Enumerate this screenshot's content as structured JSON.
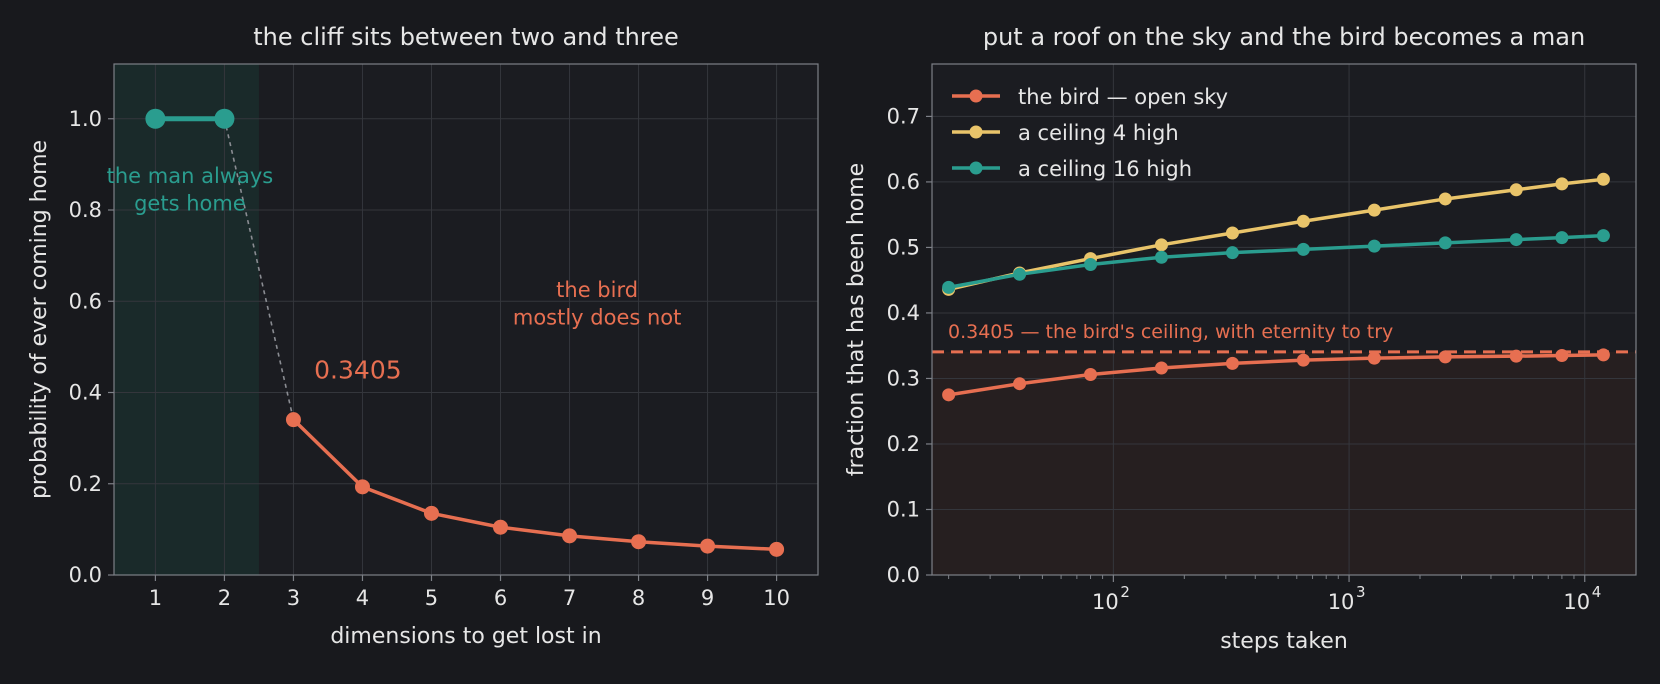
{
  "theme": {
    "background": "#18191d",
    "plot_background": "#1b1c21",
    "axes_edge": "#7d8087",
    "grid": "#34363c",
    "text": "#e6e6e6",
    "teal": "#2a9d8f",
    "orange": "#e76f51",
    "yellow": "#e9c46a",
    "dotted_link": "#8a8c92",
    "teal_band": "#1a2a2a",
    "orange_fill": "#261f20"
  },
  "chart_data": [
    {
      "type": "line",
      "title": "the cliff sits between two and three",
      "xlabel": "dimensions to get lost in",
      "ylabel": "probability of ever coming home",
      "xlim": [
        0.4,
        10.6
      ],
      "ylim": [
        0,
        1.12
      ],
      "xticks": [
        1,
        2,
        3,
        4,
        5,
        6,
        7,
        8,
        9,
        10
      ],
      "xtick_labels": [
        "1",
        "2",
        "3",
        "4",
        "5",
        "6",
        "7",
        "8",
        "9",
        "10"
      ],
      "yticks": [
        0,
        0.2,
        0.4,
        0.6,
        0.8,
        1.0
      ],
      "ytick_labels": [
        "0.0",
        "0.2",
        "0.4",
        "0.6",
        "0.8",
        "1.0"
      ],
      "grid": true,
      "shaded_x_range": [
        0.4,
        2.5
      ],
      "series": [
        {
          "color": "#2a9d8f",
          "x": [
            1,
            2
          ],
          "y": [
            1.0,
            1.0
          ]
        },
        {
          "color": "#e76f51",
          "x": [
            3,
            4,
            5,
            6,
            7,
            8,
            9,
            10
          ],
          "y": [
            0.3405,
            0.1932,
            0.1352,
            0.1047,
            0.0858,
            0.0729,
            0.0634,
            0.0562
          ]
        }
      ],
      "connector": {
        "from": [
          2,
          1.0
        ],
        "to": [
          3,
          0.3405
        ]
      },
      "annotations": [
        {
          "lines": [
            "the man always",
            "gets home"
          ],
          "x": 1.5,
          "y": 0.845,
          "color": "#2a9d8f",
          "size": 21
        },
        {
          "lines": [
            "the bird",
            "mostly does not"
          ],
          "x": 7.4,
          "y": 0.595,
          "color": "#e76f51",
          "size": 21
        },
        {
          "lines": [
            "0.3405"
          ],
          "x": 3.3,
          "y": 0.45,
          "color": "#e76f51",
          "size": 25,
          "anchor": "start"
        }
      ]
    },
    {
      "type": "line",
      "title": "put a roof on the sky and the bird becomes a man",
      "xlabel": "steps taken",
      "ylabel": "fraction that has been home",
      "xscale": "log",
      "xlim": [
        17,
        16500
      ],
      "ylim": [
        0,
        0.78
      ],
      "xticks": [
        100,
        1000,
        10000
      ],
      "xtick_base": "10",
      "xtick_exponents": [
        "2",
        "3",
        "4"
      ],
      "yticks": [
        0,
        0.1,
        0.2,
        0.3,
        0.4,
        0.5,
        0.6,
        0.7
      ],
      "ytick_labels": [
        "0.0",
        "0.1",
        "0.2",
        "0.3",
        "0.4",
        "0.5",
        "0.6",
        "0.7"
      ],
      "grid": true,
      "legend_position": "top-left",
      "x": [
        20,
        40,
        80,
        160,
        320,
        640,
        1280,
        2560,
        5120,
        8000,
        12000
      ],
      "series": [
        {
          "name": "the bird — open sky",
          "color": "#e76f51",
          "y": [
            0.275,
            0.292,
            0.306,
            0.316,
            0.323,
            0.328,
            0.331,
            0.333,
            0.334,
            0.335,
            0.336
          ]
        },
        {
          "name": "a ceiling 4 high",
          "color": "#e9c46a",
          "y": [
            0.436,
            0.461,
            0.483,
            0.504,
            0.522,
            0.54,
            0.557,
            0.574,
            0.588,
            0.597,
            0.604
          ]
        },
        {
          "name": "a ceiling 16 high",
          "color": "#2a9d8f",
          "y": [
            0.439,
            0.459,
            0.474,
            0.485,
            0.492,
            0.497,
            0.502,
            0.507,
            0.512,
            0.515,
            0.518
          ]
        }
      ],
      "reference_line": {
        "y": 0.3405,
        "label": "0.3405 — the bird's ceiling, with eternity to try",
        "color": "#e76f51"
      }
    }
  ]
}
